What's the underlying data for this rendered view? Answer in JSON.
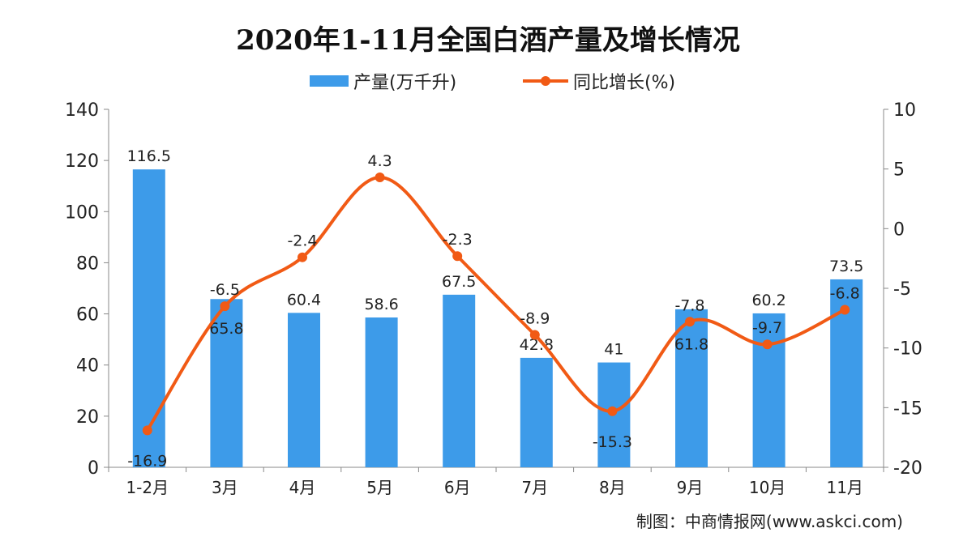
{
  "chart_data": {
    "type": "bar+line",
    "title": "2020年1-11月全国白酒产量及增长情况",
    "categories": [
      "1-2月",
      "3月",
      "4月",
      "5月",
      "6月",
      "7月",
      "8月",
      "9月",
      "10月",
      "11月"
    ],
    "series": [
      {
        "name": "产量(万千升)",
        "type": "bar",
        "axis": "left",
        "color": "#3d9be9",
        "values": [
          116.5,
          65.8,
          60.4,
          58.6,
          67.5,
          42.8,
          41,
          61.8,
          60.2,
          73.5
        ]
      },
      {
        "name": "同比增长(%)",
        "type": "line",
        "axis": "right",
        "color": "#f15a15",
        "values": [
          -16.9,
          -6.5,
          -2.4,
          4.3,
          -2.3,
          -8.9,
          -15.3,
          -7.8,
          -9.7,
          -6.8
        ]
      }
    ],
    "bar_labels": [
      "116.5",
      "65.8",
      "60.4",
      "58.6",
      "67.5",
      "42.8",
      "41",
      "61.8",
      "60.2",
      "73.5"
    ],
    "line_labels": [
      "-16.9",
      "-6.5",
      "-2.4",
      "4.3",
      "-2.3",
      "-8.9",
      "-15.3",
      "-7.8",
      "-9.7",
      "-6.8"
    ],
    "y_left": {
      "range": [
        0,
        140
      ],
      "ticks": [
        "0",
        "20",
        "40",
        "60",
        "80",
        "100",
        "120",
        "140"
      ]
    },
    "y_right": {
      "range": [
        -20,
        10
      ],
      "ticks": [
        "-20",
        "-15",
        "-10",
        "-5",
        "0",
        "5",
        "10"
      ]
    },
    "grid": false,
    "legend": "top"
  },
  "source": "制图：中商情报网(www.askci.com)"
}
